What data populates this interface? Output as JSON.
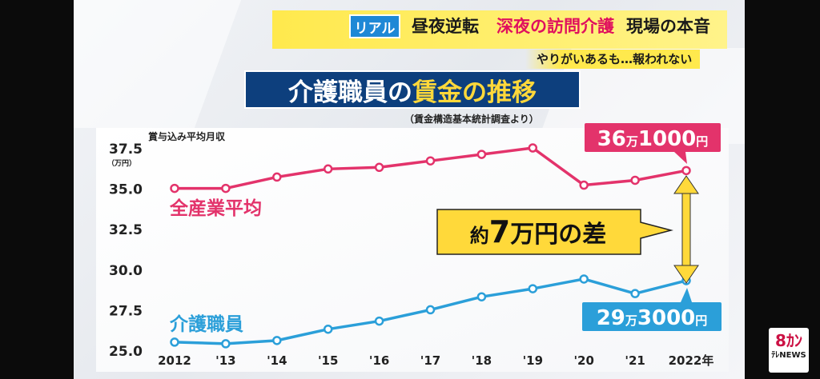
{
  "header": {
    "badge": "リアル",
    "headline_part1": "昼夜逆転",
    "headline_part2": "深夜の訪問介護",
    "headline_part3": "現場の本音",
    "tagline": "やりがいあるも…報われない"
  },
  "title": {
    "part1": "介護職員の",
    "part2": "賃金の推移"
  },
  "source_note": "（賃金構造基本統計調査より）",
  "logo": {
    "top": "8ｶﾝ",
    "bottom": "ﾃﾚNEWS"
  },
  "colors": {
    "industry": "#e3336b",
    "care": "#2b9fd9",
    "callout": "#ffd93a",
    "title_bg": "#0d3f7d"
  },
  "chart_data": {
    "type": "line",
    "ylabel": "賞与込み平均月収",
    "yunit": "（万円）",
    "ylim": [
      25.0,
      38.0
    ],
    "yticks": [
      "25.0",
      "27.5",
      "30.0",
      "32.5",
      "35.0",
      "37.5"
    ],
    "categories": [
      "2012",
      "'13",
      "'14",
      "'15",
      "'16",
      "'17",
      "'18",
      "'19",
      "'20",
      "'21",
      "2022年"
    ],
    "series": [
      {
        "name": "全産業平均",
        "values": [
          35.0,
          35.0,
          35.7,
          36.2,
          36.3,
          36.7,
          37.1,
          37.5,
          35.2,
          35.5,
          36.1
        ]
      },
      {
        "name": "介護職員",
        "values": [
          25.5,
          25.4,
          25.6,
          26.3,
          26.8,
          27.5,
          28.3,
          28.8,
          29.4,
          28.5,
          29.3
        ]
      }
    ],
    "annotations": {
      "industry_end": {
        "big1": "36",
        "small": "万",
        "big2": "1000",
        "unit": "円"
      },
      "care_end": {
        "big1": "29",
        "small": "万",
        "big2": "3000",
        "unit": "円"
      },
      "gap": {
        "pre": "約",
        "mid": "7",
        "post": "万円の差"
      }
    },
    "grid": false,
    "legend": "inline-labels"
  }
}
